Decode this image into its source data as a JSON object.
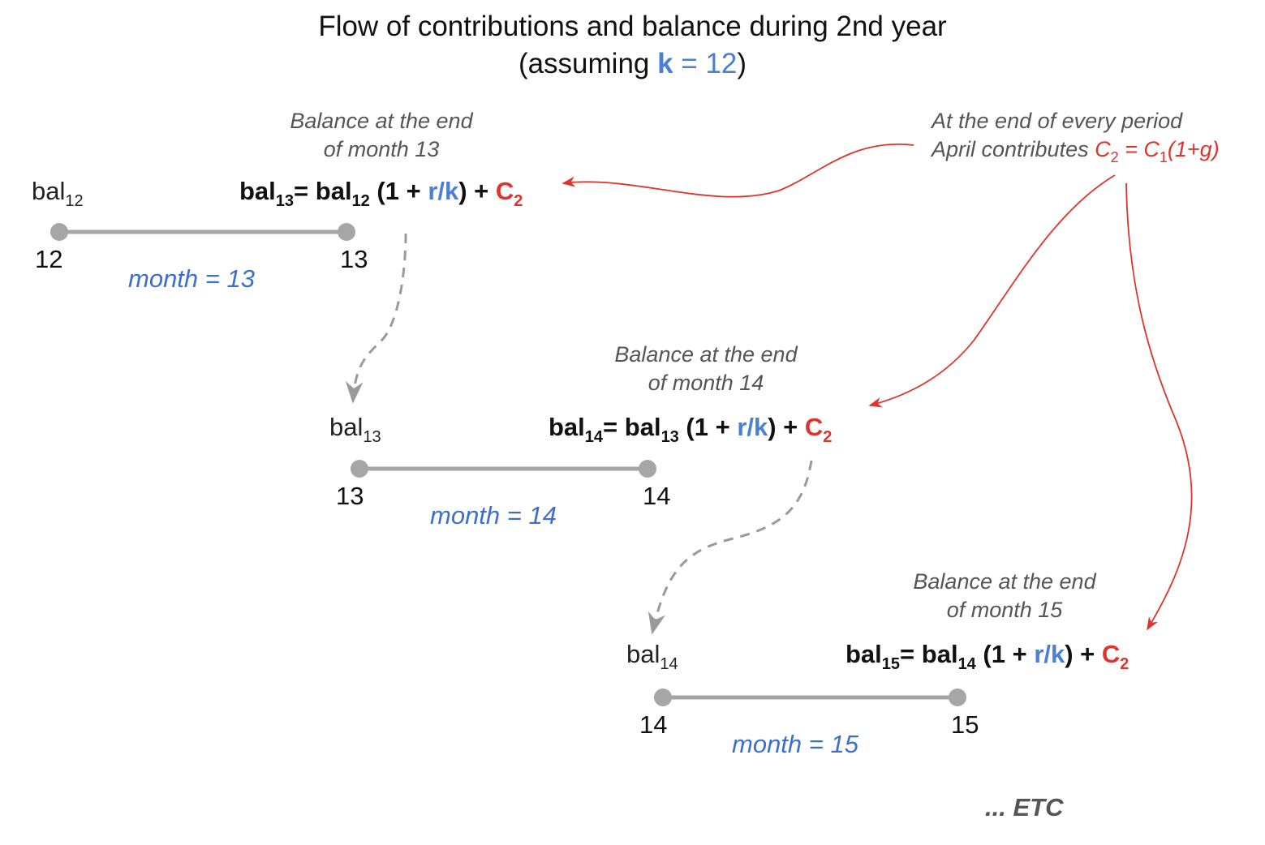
{
  "title": {
    "line1": "Flow of contributions and balance during 2nd year",
    "line2_prefix": "(assuming ",
    "line2_k": "k",
    "line2_eq": " = 12",
    "line2_suffix": ")"
  },
  "contribution_note": {
    "line1": "At the end of every period",
    "line2_prefix": "April contributes ",
    "c2": "C",
    "c2_sub": "2",
    "eq": " = C",
    "c1_sub": "1",
    "tail": "(1+g)"
  },
  "steps": [
    {
      "note_line1": "Balance at the end",
      "note_line2": "of month 13",
      "lhs_sub": "13",
      "rhs_sub": "12",
      "start_label_sub": "12",
      "start_tick": "12",
      "end_tick": "13",
      "month_label": "month = 13"
    },
    {
      "note_line1": "Balance at the end",
      "note_line2": "of month 14",
      "lhs_sub": "14",
      "rhs_sub": "13",
      "start_label_sub": "13",
      "start_tick": "13",
      "end_tick": "14",
      "month_label": "month = 14"
    },
    {
      "note_line1": "Balance at the end",
      "note_line2": "of month 15",
      "lhs_sub": "15",
      "rhs_sub": "14",
      "start_label_sub": "14",
      "start_tick": "14",
      "end_tick": "15",
      "month_label": "month = 15"
    }
  ],
  "formula_parts": {
    "bal": "bal",
    "eq": "= ",
    "open": " (1 + ",
    "rk": "r/k",
    "close": ") + ",
    "c": "C",
    "c_sub": "2"
  },
  "etc": "... ETC",
  "colors": {
    "accent_blue": "#4a7fd6",
    "month_blue": "#3a6fd0",
    "contribution_red": "#e0332b",
    "timeline_gray": "#a6a6a6",
    "arrow_gray": "#9a9a9a"
  }
}
